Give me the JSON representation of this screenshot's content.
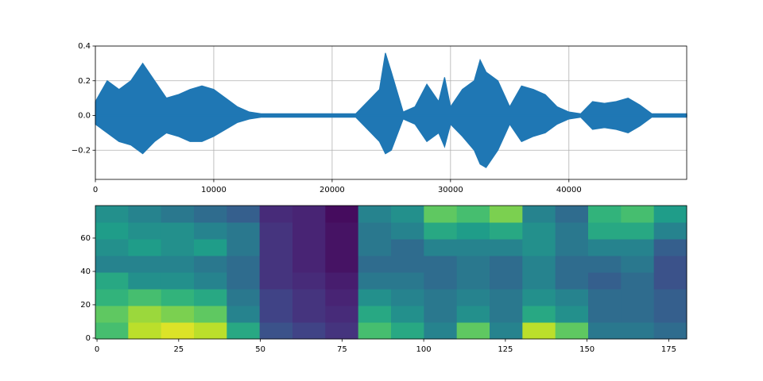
{
  "chart_data": [
    {
      "type": "envelope",
      "x": [
        0,
        1000,
        2000,
        3000,
        4000,
        5000,
        6000,
        7000,
        8000,
        9000,
        10000,
        11000,
        12000,
        13000,
        14000,
        15000,
        16000,
        17000,
        18000,
        19000,
        20000,
        21000,
        22000,
        23000,
        24000,
        24500,
        25000,
        26000,
        27000,
        28000,
        29000,
        29500,
        30000,
        31000,
        32000,
        32500,
        33000,
        34000,
        35000,
        36000,
        37000,
        38000,
        39000,
        40000,
        41000,
        42000,
        43000,
        44000,
        45000,
        46000,
        47000,
        48000,
        49000,
        49950
      ],
      "series": [
        {
          "color": "#1f77b4",
          "values": [
            0.08,
            0.2,
            0.15,
            0.2,
            0.3,
            0.2,
            0.1,
            0.12,
            0.15,
            0.17,
            0.15,
            0.1,
            0.05,
            0.02,
            0.01,
            0.01,
            0.01,
            0.01,
            0.01,
            0.01,
            0.01,
            0.01,
            0.01,
            0.08,
            0.15,
            0.36,
            0.25,
            0.02,
            0.05,
            0.18,
            0.08,
            0.22,
            0.05,
            0.15,
            0.2,
            0.32,
            0.25,
            0.2,
            0.05,
            0.17,
            0.15,
            0.12,
            0.05,
            0.02,
            0.01,
            0.08,
            0.07,
            0.08,
            0.1,
            0.06,
            0.01,
            0.01,
            0.01,
            0.01
          ]
        },
        {
          "color": "#1f77b4",
          "values": [
            -0.05,
            -0.1,
            -0.15,
            -0.17,
            -0.22,
            -0.15,
            -0.1,
            -0.12,
            -0.15,
            -0.15,
            -0.12,
            -0.08,
            -0.04,
            -0.02,
            -0.01,
            -0.01,
            -0.01,
            -0.01,
            -0.01,
            -0.01,
            -0.01,
            -0.01,
            -0.01,
            -0.08,
            -0.15,
            -0.22,
            -0.2,
            -0.02,
            -0.05,
            -0.15,
            -0.1,
            -0.18,
            -0.05,
            -0.12,
            -0.2,
            -0.28,
            -0.3,
            -0.2,
            -0.05,
            -0.15,
            -0.12,
            -0.1,
            -0.05,
            -0.02,
            -0.01,
            -0.08,
            -0.07,
            -0.08,
            -0.1,
            -0.06,
            -0.01,
            -0.01,
            -0.01,
            -0.01
          ]
        }
      ],
      "xlim": [
        0,
        49950
      ],
      "xticks": [
        0,
        10000,
        20000,
        30000,
        40000
      ],
      "ylim": [
        -0.368,
        0.4
      ],
      "yticks": [
        {
          "value": -0.2,
          "label": "−0.2"
        },
        {
          "value": 0,
          "label": "0.0"
        },
        0.2,
        0.4
      ],
      "grid": true
    },
    {
      "type": "heatmap",
      "colormap": "viridis",
      "xlim": [
        -0.5,
        180.5
      ],
      "xticks": [
        0,
        25,
        50,
        75,
        100,
        125,
        150,
        175
      ],
      "ylim": [
        -0.5,
        79.5
      ],
      "yticks": [
        0,
        20,
        40,
        60
      ],
      "z": [
        [
          0.7,
          0.9,
          0.95,
          0.9,
          0.6,
          0.25,
          0.2,
          0.15,
          0.7,
          0.6,
          0.45,
          0.75,
          0.45,
          0.9,
          0.75,
          0.4,
          0.4,
          0.35
        ],
        [
          0.75,
          0.85,
          0.8,
          0.75,
          0.45,
          0.2,
          0.15,
          0.12,
          0.6,
          0.5,
          0.4,
          0.5,
          0.4,
          0.6,
          0.5,
          0.35,
          0.35,
          0.3
        ],
        [
          0.65,
          0.7,
          0.65,
          0.6,
          0.4,
          0.2,
          0.15,
          0.1,
          0.5,
          0.45,
          0.4,
          0.45,
          0.4,
          0.5,
          0.45,
          0.35,
          0.35,
          0.3
        ],
        [
          0.6,
          0.5,
          0.5,
          0.45,
          0.35,
          0.15,
          0.12,
          0.08,
          0.4,
          0.4,
          0.35,
          0.4,
          0.35,
          0.45,
          0.35,
          0.3,
          0.35,
          0.25
        ],
        [
          0.45,
          0.45,
          0.45,
          0.4,
          0.35,
          0.15,
          0.1,
          0.05,
          0.35,
          0.35,
          0.35,
          0.4,
          0.35,
          0.45,
          0.35,
          0.35,
          0.4,
          0.25
        ],
        [
          0.5,
          0.55,
          0.5,
          0.55,
          0.4,
          0.15,
          0.1,
          0.05,
          0.4,
          0.35,
          0.45,
          0.45,
          0.45,
          0.5,
          0.4,
          0.45,
          0.45,
          0.3
        ],
        [
          0.55,
          0.5,
          0.5,
          0.45,
          0.4,
          0.15,
          0.1,
          0.05,
          0.4,
          0.45,
          0.6,
          0.55,
          0.6,
          0.5,
          0.4,
          0.6,
          0.6,
          0.45
        ],
        [
          0.5,
          0.45,
          0.4,
          0.35,
          0.3,
          0.12,
          0.1,
          0.03,
          0.45,
          0.5,
          0.75,
          0.7,
          0.8,
          0.45,
          0.35,
          0.65,
          0.7,
          0.55
        ]
      ]
    }
  ]
}
